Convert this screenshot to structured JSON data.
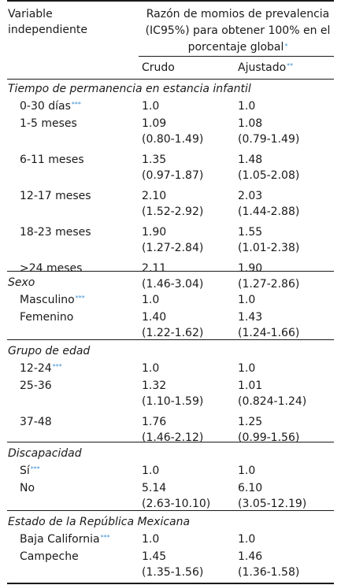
{
  "header": {
    "var_line1": "Variable",
    "var_line2": "independiente",
    "title_line1": "Razón de momios de prevalencia",
    "title_line2": "(IC95%) para obtener 100% en el",
    "title_line3": "porcentaje global",
    "title_mark": "*",
    "col_crudo": "Crudo",
    "col_ajustado": "Ajustado",
    "col_ajustado_mark": "**"
  },
  "sections": [
    {
      "title": "Tiempo de permanencia en estancia infantil",
      "rows": [
        {
          "label": "0-30 días",
          "mark": "***",
          "crudo": "1.0",
          "crudo_ci": "",
          "ajustado": "1.0",
          "ajustado_ci": ""
        },
        {
          "label": "1-5 meses",
          "mark": "",
          "crudo": "1.09",
          "crudo_ci": "(0.80-1.49)",
          "ajustado": "1.08",
          "ajustado_ci": "(0.79-1.49)"
        },
        {
          "label": "6-11 meses",
          "mark": "",
          "crudo": "1.35",
          "crudo_ci": "(0.97-1.87)",
          "ajustado": "1.48",
          "ajustado_ci": "(1.05-2.08)"
        },
        {
          "label": "12-17 meses",
          "mark": "",
          "crudo": "2.10",
          "crudo_ci": "(1.52-2.92)",
          "ajustado": "2.03",
          "ajustado_ci": "(1.44-2.88)"
        },
        {
          "label": "18-23 meses",
          "mark": "",
          "crudo": "1.90",
          "crudo_ci": "(1.27-2.84)",
          "ajustado": "1.55",
          "ajustado_ci": "(1.01-2.38)"
        },
        {
          "label": ">24 meses",
          "mark": "",
          "crudo": "2.11",
          "crudo_ci": "(1.46-3.04)",
          "ajustado": "1.90",
          "ajustado_ci": "(1.27-2.86)"
        }
      ]
    },
    {
      "title": "Sexo",
      "rows": [
        {
          "label": "Masculino",
          "mark": "***",
          "crudo": "1.0",
          "crudo_ci": "",
          "ajustado": "1.0",
          "ajustado_ci": ""
        },
        {
          "label": "Femenino",
          "mark": "",
          "crudo": "1.40",
          "crudo_ci": "(1.22-1.62)",
          "ajustado": "1.43",
          "ajustado_ci": "(1.24-1.66)"
        }
      ]
    },
    {
      "title": "Grupo de edad",
      "rows": [
        {
          "label": "12-24",
          "mark": "***",
          "crudo": "1.0",
          "crudo_ci": "",
          "ajustado": "1.0",
          "ajustado_ci": ""
        },
        {
          "label": "25-36",
          "mark": "",
          "crudo": "1.32",
          "crudo_ci": "(1.10-1.59)",
          "ajustado": "1.01",
          "ajustado_ci": "(0.824-1.24)"
        },
        {
          "label": "37-48",
          "mark": "",
          "crudo": "1.76",
          "crudo_ci": "(1.46-2.12)",
          "ajustado": "1.25",
          "ajustado_ci": "(0.99-1.56)"
        }
      ]
    },
    {
      "title": "Discapacidad",
      "rows": [
        {
          "label": "Sí",
          "mark": "***",
          "crudo": "1.0",
          "crudo_ci": "",
          "ajustado": "1.0",
          "ajustado_ci": ""
        },
        {
          "label": "No",
          "mark": "",
          "crudo": "5.14",
          "crudo_ci": "(2.63-10.10)",
          "ajustado": "6.10",
          "ajustado_ci": "(3.05-12.19)"
        }
      ]
    },
    {
      "title": "Estado de la República Mexicana",
      "rows": [
        {
          "label": "Baja California",
          "mark": "***",
          "crudo": "1.0",
          "crudo_ci": "",
          "ajustado": "1.0",
          "ajustado_ci": ""
        },
        {
          "label": "Campeche",
          "mark": "",
          "crudo": "1.45",
          "crudo_ci": "(1.35-1.56)",
          "ajustado": "1.46",
          "ajustado_ci": "(1.36-1.58)"
        }
      ]
    }
  ]
}
